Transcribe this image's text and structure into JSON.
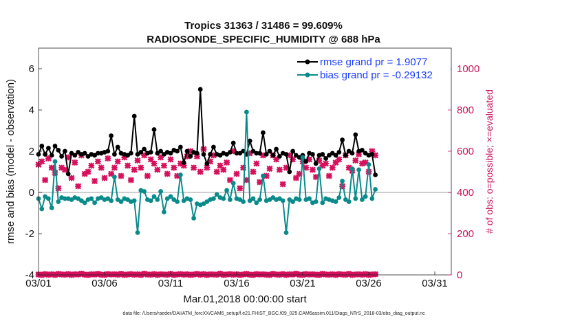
{
  "chart_data": {
    "type": "line",
    "title": "Tropics 31363 / 31486 = 99.609%",
    "subtitle": "RADIOSONDE_SPECIFIC_HUMIDITY @ 688 hPa",
    "xlabel": "Mar.01,2018 00:00:00 start",
    "ylabel": "rmse and bias (model - observation)",
    "ylabel_right": "# of obs: o=possible; ×=evaluated",
    "footnote": "data file: /Users/raeder/DAI/ATM_forcXX/CAM6_setup/f.e21.FHIST_BGC.f09_025.CAM6assim.011/Diags_NTrS_2018-03/obs_diag_output.nc",
    "xlim": [
      0,
      31.25
    ],
    "ylim": [
      -4,
      7
    ],
    "ylim_right": [
      0,
      1100
    ],
    "x_ticks": [
      {
        "x": 0,
        "label": "03/01"
      },
      {
        "x": 5,
        "label": "03/06"
      },
      {
        "x": 10,
        "label": "03/11"
      },
      {
        "x": 15,
        "label": "03/16"
      },
      {
        "x": 20,
        "label": "03/21"
      },
      {
        "x": 25,
        "label": "03/26"
      },
      {
        "x": 30,
        "label": "03/31"
      }
    ],
    "y_ticks": [
      -4,
      -2,
      0,
      2,
      4,
      6
    ],
    "y_ticks_right": [
      0,
      200,
      400,
      600,
      800,
      1000
    ],
    "x_step": 0.25,
    "series": [
      {
        "name": "rmse grand pr = 1.9077",
        "color": "#000000",
        "axis": "left",
        "values": [
          1.85,
          2.25,
          1.85,
          2.15,
          1.8,
          2.25,
          2.05,
          1.75,
          2.0,
          0.9,
          1.9,
          1.8,
          1.95,
          1.85,
          1.9,
          1.75,
          1.85,
          1.8,
          1.9,
          1.9,
          1.95,
          2.0,
          2.75,
          1.85,
          2.2,
          1.9,
          1.85,
          1.8,
          1.9,
          3.7,
          1.85,
          1.95,
          2.1,
          1.9,
          1.95,
          3.05,
          1.9,
          2.0,
          1.85,
          1.95,
          1.9,
          2.05,
          2.0,
          2.2,
          1.45,
          2.0,
          1.75,
          1.95,
          1.9,
          5.0,
          1.85,
          1.4,
          1.85,
          2.2,
          1.85,
          1.8,
          1.9,
          1.85,
          1.95,
          2.4,
          1.9,
          1.9,
          2.0,
          1.85,
          2.5,
          2.0,
          1.9,
          1.9,
          2.9,
          1.85,
          2.0,
          1.8,
          2.1,
          1.75,
          1.9,
          1.85,
          1.0,
          2.0,
          1.8,
          1.7,
          1.8,
          1.5,
          1.9,
          1.85,
          1.4,
          1.8,
          1.85,
          1.65,
          1.8,
          1.9,
          1.8,
          1.95,
          2.55,
          1.8,
          2.0,
          1.9,
          2.8,
          2.0,
          2.05,
          1.9,
          1.8,
          1.85,
          0.85
        ]
      },
      {
        "name": "bias grand pr = -0.29132",
        "color": "#0a8a8a",
        "axis": "left",
        "values": [
          -0.3,
          -0.8,
          -0.2,
          -0.3,
          -0.75,
          1.5,
          -0.45,
          -0.25,
          -0.3,
          -0.3,
          -0.35,
          -0.25,
          -0.3,
          -0.4,
          -0.5,
          -0.35,
          -0.3,
          -0.5,
          -0.3,
          -0.25,
          -0.35,
          -0.3,
          -0.4,
          0.75,
          -0.35,
          -0.45,
          -0.3,
          -0.35,
          -0.45,
          -0.4,
          -1.95,
          0.1,
          0.05,
          -0.35,
          -0.4,
          -0.2,
          -0.35,
          0.05,
          -0.95,
          -0.3,
          -0.2,
          -0.35,
          -0.45,
          0.85,
          -0.4,
          -0.3,
          -0.35,
          -1.25,
          -0.55,
          -0.6,
          -0.55,
          -0.45,
          -0.35,
          -0.3,
          -0.1,
          -0.25,
          -0.3,
          0.1,
          -0.35,
          0.45,
          -0.3,
          -0.35,
          -0.45,
          3.9,
          -0.4,
          -0.3,
          -0.5,
          -0.35,
          0.8,
          -0.4,
          -0.35,
          -0.25,
          -0.35,
          -0.3,
          -0.4,
          -1.95,
          -0.35,
          -0.45,
          -0.3,
          -0.35,
          1.7,
          -0.35,
          -0.3,
          -0.5,
          -0.45,
          1.15,
          -0.5,
          -0.3,
          -0.35,
          -0.4,
          -0.45,
          -0.25,
          0.55,
          -0.35,
          -0.45,
          1.15,
          -0.3,
          1.1,
          -0.35,
          -0.2,
          1.35,
          -0.3,
          0.15
        ]
      },
      {
        "name": "evaluated",
        "color": "#d6105c",
        "axis": "right",
        "values": [
          535,
          550,
          460,
          565,
          520,
          495,
          420,
          520,
          510,
          570,
          470,
          545,
          430,
          580,
          490,
          500,
          530,
          455,
          550,
          520,
          470,
          565,
          490,
          520,
          550,
          480,
          570,
          530,
          460,
          510,
          555,
          520,
          580,
          480,
          560,
          540,
          510,
          570,
          530,
          490,
          560,
          520,
          480,
          540,
          530,
          575,
          600,
          520,
          575,
          500,
          610,
          520,
          550,
          580,
          500,
          530,
          510,
          545,
          460,
          600,
          490,
          420,
          520,
          460,
          590,
          500,
          540,
          450,
          580,
          480,
          515,
          580,
          560,
          510,
          440,
          520,
          580,
          560,
          470,
          490,
          550,
          520,
          560,
          510,
          475,
          555,
          530,
          540,
          480,
          520,
          545,
          560,
          430,
          580,
          520,
          505,
          555,
          585,
          540,
          545,
          500,
          600,
          580
        ]
      },
      {
        "name": "possible",
        "color": "#d6105c",
        "axis": "right",
        "values": [
          2,
          0,
          4,
          1,
          3,
          0,
          5,
          2,
          1,
          4,
          0,
          3,
          2,
          6,
          1,
          0,
          3,
          2,
          5,
          1,
          0,
          4,
          2,
          3,
          1,
          5,
          0,
          2,
          4,
          1,
          3,
          0,
          6,
          2,
          1,
          4,
          0,
          3,
          2,
          1,
          5,
          0,
          2,
          4,
          1,
          3,
          0,
          2,
          5,
          1,
          4,
          0,
          3,
          2,
          1,
          6,
          0,
          2,
          4,
          1,
          3,
          0,
          2,
          5,
          1,
          0,
          4,
          2,
          3,
          1,
          0,
          5,
          2,
          1,
          4,
          0,
          3,
          2,
          6,
          1,
          0,
          4,
          2,
          3,
          1,
          0,
          5,
          2,
          1,
          3,
          0,
          4,
          2,
          1,
          5,
          0,
          2,
          3,
          1,
          4,
          0,
          2,
          3
        ]
      }
    ]
  }
}
